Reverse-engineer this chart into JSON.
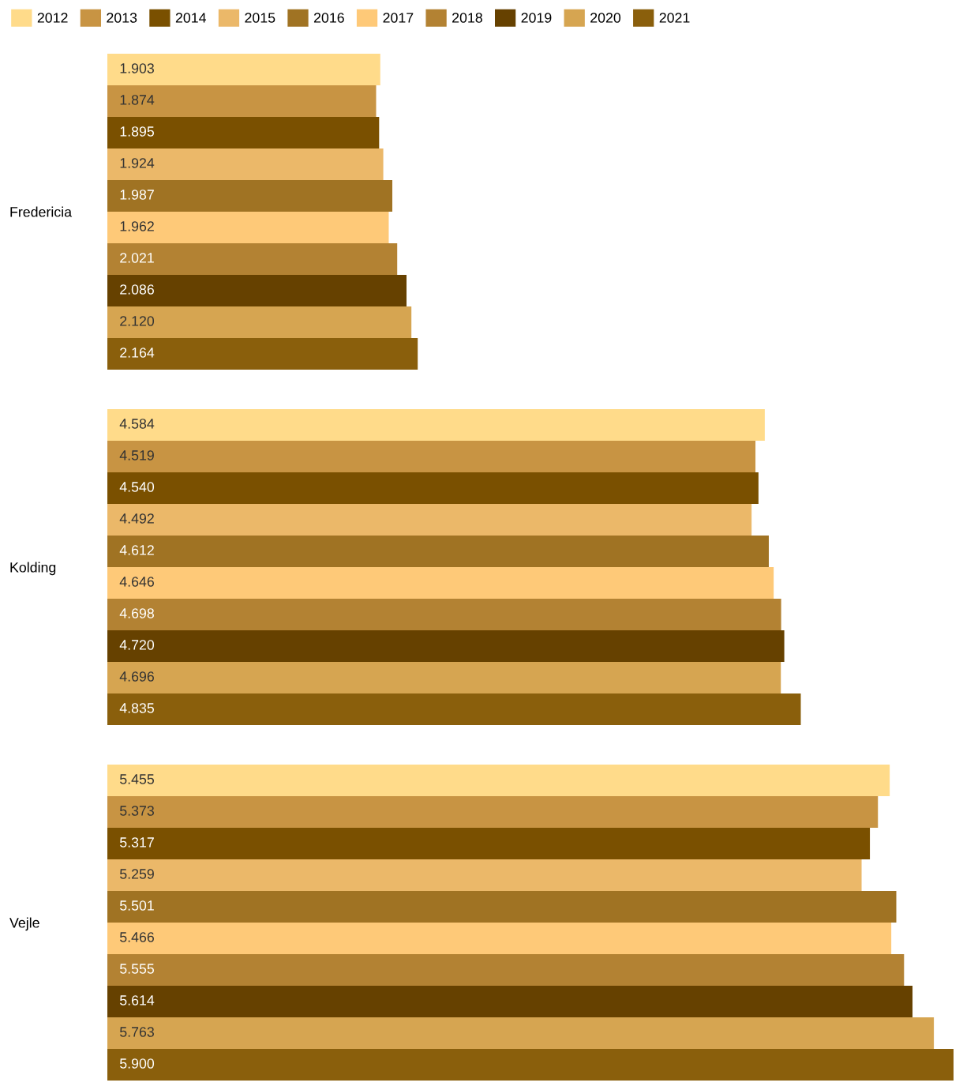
{
  "chart_data": {
    "type": "bar",
    "orientation": "horizontal",
    "legend": "top left",
    "categories": [
      "Fredericia",
      "Kolding",
      "Vejle"
    ],
    "series": [
      {
        "name": "2012",
        "color": "#ffdb8a",
        "values": [
          1903,
          4584,
          5455
        ],
        "value_labels": [
          "1.903",
          "4.584",
          "5.455"
        ]
      },
      {
        "name": "2013",
        "color": "#c89443",
        "values": [
          1874,
          4519,
          5373
        ],
        "value_labels": [
          "1.874",
          "4.519",
          "5.373"
        ]
      },
      {
        "name": "2014",
        "color": "#7a5000",
        "values": [
          1895,
          4540,
          5317
        ],
        "value_labels": [
          "1.895",
          "4.540",
          "5.317"
        ]
      },
      {
        "name": "2015",
        "color": "#ebb869",
        "values": [
          1924,
          4492,
          5259
        ],
        "value_labels": [
          "1.924",
          "4.492",
          "5.259"
        ]
      },
      {
        "name": "2016",
        "color": "#a07323",
        "values": [
          1987,
          4612,
          5501
        ],
        "value_labels": [
          "1.987",
          "4.612",
          "5.501"
        ]
      },
      {
        "name": "2017",
        "color": "#fec978",
        "values": [
          1962,
          4646,
          5466
        ],
        "value_labels": [
          "1.962",
          "4.646",
          "5.466"
        ]
      },
      {
        "name": "2018",
        "color": "#b38233",
        "values": [
          2021,
          4698,
          5555
        ],
        "value_labels": [
          "2.021",
          "4.698",
          "5.555"
        ]
      },
      {
        "name": "2019",
        "color": "#664100",
        "values": [
          2086,
          4720,
          5614
        ],
        "value_labels": [
          "2.086",
          "4.720",
          "5.614"
        ]
      },
      {
        "name": "2020",
        "color": "#d6a551",
        "values": [
          2120,
          4696,
          5763
        ],
        "value_labels": [
          "2.120",
          "4.696",
          "5.763"
        ]
      },
      {
        "name": "2021",
        "color": "#8a5f0c",
        "values": [
          2164,
          4835,
          5900
        ],
        "value_labels": [
          "2.164",
          "4.835",
          "5.900"
        ]
      }
    ]
  }
}
